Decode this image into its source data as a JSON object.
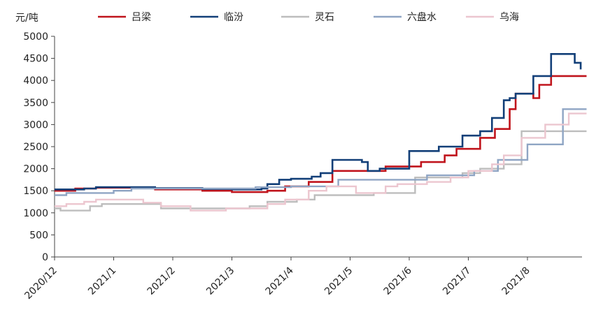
{
  "chart_data": {
    "type": "line",
    "title": "",
    "xlabel": "",
    "ylabel": "元/吨",
    "ylim": [
      0,
      5000
    ],
    "y_ticks": [
      0,
      500,
      1000,
      1500,
      2000,
      2500,
      3000,
      3500,
      4000,
      4500,
      5000
    ],
    "x_ticks": [
      "2020/12",
      "2021/1",
      "2021/2",
      "2021/3",
      "2021/4",
      "2021/5",
      "2021/6",
      "2021/7",
      "2021/8"
    ],
    "x_range": [
      "2020/12",
      "2021/8 end"
    ],
    "grid": false,
    "legend_position": "top",
    "series": [
      {
        "name": "吕梁",
        "color": "#c0141c",
        "step": true,
        "points": [
          [
            0,
            1500
          ],
          [
            0.35,
            1550
          ],
          [
            0.7,
            1570
          ],
          [
            1.0,
            1570
          ],
          [
            1.7,
            1530
          ],
          [
            2.5,
            1500
          ],
          [
            3.0,
            1470
          ],
          [
            3.6,
            1500
          ],
          [
            3.9,
            1600
          ],
          [
            4.3,
            1700
          ],
          [
            4.7,
            1950
          ],
          [
            5.6,
            2050
          ],
          [
            6.2,
            2150
          ],
          [
            6.6,
            2300
          ],
          [
            6.8,
            2450
          ],
          [
            7.2,
            2700
          ],
          [
            7.45,
            2900
          ],
          [
            7.7,
            3350
          ],
          [
            7.8,
            3700
          ],
          [
            8.1,
            3600
          ],
          [
            8.2,
            3900
          ],
          [
            8.4,
            4100
          ],
          [
            9.0,
            4100
          ]
        ]
      },
      {
        "name": "临汾",
        "color": "#123f78",
        "step": true,
        "points": [
          [
            0,
            1530
          ],
          [
            0.5,
            1550
          ],
          [
            0.7,
            1580
          ],
          [
            1.3,
            1580
          ],
          [
            1.7,
            1560
          ],
          [
            2.5,
            1540
          ],
          [
            3.0,
            1530
          ],
          [
            3.5,
            1550
          ],
          [
            3.6,
            1650
          ],
          [
            3.8,
            1750
          ],
          [
            4.0,
            1770
          ],
          [
            4.35,
            1820
          ],
          [
            4.5,
            1900
          ],
          [
            4.7,
            2200
          ],
          [
            5.2,
            2150
          ],
          [
            5.3,
            1950
          ],
          [
            5.5,
            2000
          ],
          [
            6.0,
            2400
          ],
          [
            6.5,
            2500
          ],
          [
            6.9,
            2750
          ],
          [
            7.2,
            2850
          ],
          [
            7.4,
            3150
          ],
          [
            7.6,
            3550
          ],
          [
            7.7,
            3600
          ],
          [
            7.8,
            3700
          ],
          [
            8.1,
            4100
          ],
          [
            8.4,
            4600
          ],
          [
            8.6,
            4600
          ],
          [
            8.8,
            4400
          ],
          [
            8.9,
            4250
          ]
        ]
      },
      {
        "name": "灵石",
        "color": "#bdbdbd",
        "step": true,
        "points": [
          [
            0,
            1100
          ],
          [
            0.1,
            1050
          ],
          [
            0.6,
            1150
          ],
          [
            0.8,
            1200
          ],
          [
            1.8,
            1100
          ],
          [
            3.3,
            1150
          ],
          [
            3.6,
            1250
          ],
          [
            4.1,
            1300
          ],
          [
            4.4,
            1400
          ],
          [
            5.4,
            1450
          ],
          [
            6.1,
            1800
          ],
          [
            6.9,
            1900
          ],
          [
            7.2,
            2000
          ],
          [
            7.6,
            2100
          ],
          [
            7.9,
            2850
          ],
          [
            9.0,
            2850
          ]
        ]
      },
      {
        "name": "六盘水",
        "color": "#8fa5c4",
        "step": true,
        "points": [
          [
            0,
            1400
          ],
          [
            0.2,
            1450
          ],
          [
            1.0,
            1500
          ],
          [
            1.3,
            1550
          ],
          [
            3.4,
            1580
          ],
          [
            4.0,
            1600
          ],
          [
            4.8,
            1750
          ],
          [
            6.3,
            1850
          ],
          [
            7.1,
            1950
          ],
          [
            7.5,
            2200
          ],
          [
            8.0,
            2550
          ],
          [
            8.6,
            3350
          ],
          [
            9.0,
            3350
          ]
        ]
      },
      {
        "name": "乌海",
        "color": "#ecc6cf",
        "step": true,
        "points": [
          [
            0,
            1150
          ],
          [
            0.2,
            1200
          ],
          [
            0.5,
            1250
          ],
          [
            0.7,
            1300
          ],
          [
            1.5,
            1230
          ],
          [
            1.8,
            1150
          ],
          [
            2.3,
            1050
          ],
          [
            2.9,
            1100
          ],
          [
            3.6,
            1200
          ],
          [
            3.9,
            1300
          ],
          [
            4.3,
            1500
          ],
          [
            4.6,
            1600
          ],
          [
            5.1,
            1450
          ],
          [
            5.6,
            1600
          ],
          [
            5.8,
            1650
          ],
          [
            6.3,
            1700
          ],
          [
            6.7,
            1800
          ],
          [
            7.0,
            1950
          ],
          [
            7.4,
            2100
          ],
          [
            7.6,
            2300
          ],
          [
            7.9,
            2700
          ],
          [
            8.3,
            3000
          ],
          [
            8.7,
            3250
          ],
          [
            9.0,
            3250
          ]
        ]
      }
    ]
  }
}
